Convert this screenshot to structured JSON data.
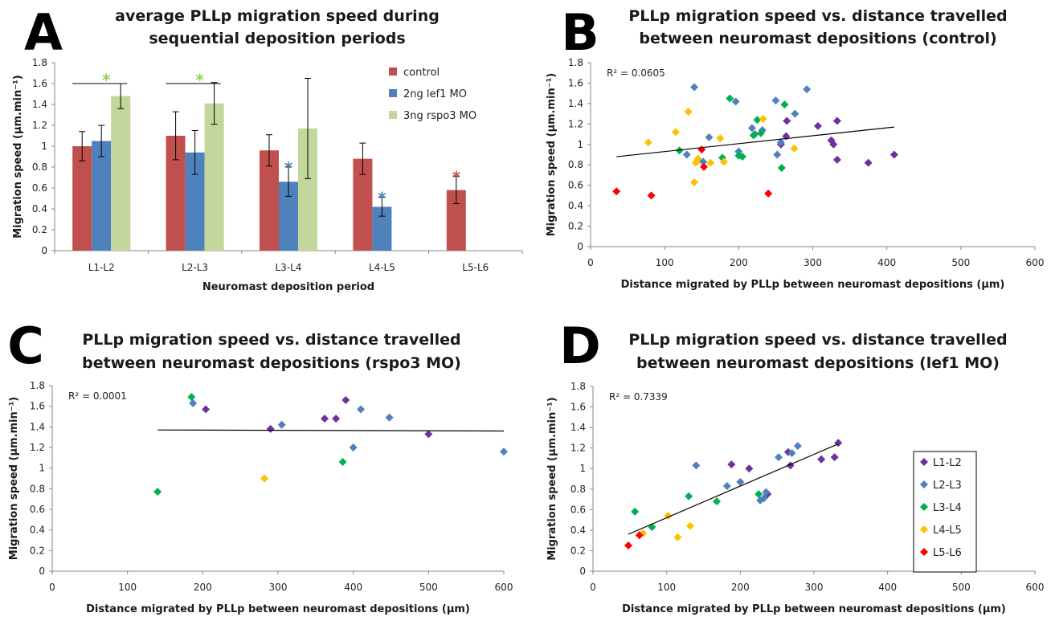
{
  "colors": {
    "control": "#c0504d",
    "lef1": "#4f81bd",
    "rspo3": "#c3d69b",
    "L1-L2": "#7030a0",
    "L2-L3": "#4f81bd",
    "L3-L4": "#00b050",
    "L4-L5": "#ffc000",
    "L5-L6": "#ff0000",
    "star_green": "#92d050",
    "star_blue": "#4f81bd",
    "star_red": "#c0504d"
  },
  "chart_data": [
    {
      "panel": "A",
      "type": "bar",
      "title_lines": [
        "average PLLp migration speed during",
        "sequential deposition periods"
      ],
      "xlabel": "Neuromast deposition period",
      "ylabel": "Migration speed (μm.min⁻¹)",
      "ylim": [
        0,
        1.8
      ],
      "yticks": [
        0,
        0.2,
        0.4,
        0.6,
        0.8,
        1,
        1.2,
        1.4,
        1.6,
        1.8
      ],
      "ytick_labels": [
        "0",
        "0.2",
        "0.4",
        "0.6",
        "0.8",
        "1",
        "1.2",
        "1.4",
        "1.6",
        "1.8"
      ],
      "categories": [
        "L1-L2",
        "L2-L3",
        "L3-L4",
        "L4-L5",
        "L5-L6"
      ],
      "legend_position": "top-right",
      "series": [
        {
          "name": "control",
          "color_key": "control",
          "values": [
            1.0,
            1.1,
            0.96,
            0.88,
            0.58
          ],
          "errors": [
            0.14,
            0.23,
            0.15,
            0.15,
            0.13
          ]
        },
        {
          "name": "2ng lef1 MO",
          "color_key": "lef1",
          "values": [
            1.05,
            0.94,
            0.66,
            0.42,
            null
          ],
          "errors": [
            0.15,
            0.21,
            0.14,
            0.09,
            null
          ]
        },
        {
          "name": "3ng rspo3 MO",
          "color_key": "rspo3",
          "values": [
            1.48,
            1.41,
            1.17,
            null,
            null
          ],
          "errors": [
            0.12,
            0.2,
            0.48,
            null,
            null
          ]
        }
      ],
      "significance": [
        {
          "label": "*",
          "category": 0,
          "series": 2,
          "y": 1.7,
          "color_key": "star_green",
          "bracket": [
            0,
            2
          ]
        },
        {
          "label": "*",
          "category": 1,
          "series": 2,
          "y": 1.7,
          "color_key": "star_green",
          "bracket": [
            0,
            2
          ]
        },
        {
          "label": "*",
          "category": 2,
          "series": 1,
          "y": 0.84,
          "color_key": "star_blue"
        },
        {
          "label": "*",
          "category": 3,
          "series": 1,
          "y": 0.55,
          "color_key": "star_blue"
        },
        {
          "label": "*",
          "category": 4,
          "series": 0,
          "y": 0.75,
          "color_key": "star_red"
        }
      ]
    },
    {
      "panel": "B",
      "type": "scatter",
      "title_lines": [
        "PLLp migration speed vs. distance travelled",
        "between neuromast depositions (control)"
      ],
      "xlabel": "Distance migrated by PLLp between neuromast depositions (μm)",
      "ylabel": "Migration speed (μm.min⁻¹)",
      "xlim": [
        0,
        600
      ],
      "ylim": [
        0,
        1.8
      ],
      "xticks": [
        0,
        100,
        200,
        300,
        400,
        500,
        600
      ],
      "xtick_labels": [
        "0",
        "100",
        "200",
        "300",
        "400",
        "500",
        "600"
      ],
      "yticks": [
        0,
        0.2,
        0.4,
        0.6,
        0.8,
        1,
        1.2,
        1.4,
        1.6,
        1.8
      ],
      "ytick_labels": [
        "0",
        "0.2",
        "0.4",
        "0.6",
        "0.8",
        "1",
        "1.2",
        "1.4",
        "1.6",
        "1.8"
      ],
      "r2_label": "R² = 0.0605",
      "trendline": {
        "x": [
          35,
          410
        ],
        "y": [
          0.88,
          1.17
        ]
      },
      "series": [
        {
          "color_key": "L1-L2",
          "points": [
            [
              257,
              1.0
            ],
            [
              264,
              1.08
            ],
            [
              265,
              1.23
            ],
            [
              307,
              1.18
            ],
            [
              325,
              1.04
            ],
            [
              328,
              1.0
            ],
            [
              333,
              0.85
            ],
            [
              333,
              1.23
            ],
            [
              375,
              0.82
            ],
            [
              410,
              0.9
            ]
          ]
        },
        {
          "color_key": "L2-L3",
          "points": [
            [
              130,
              0.9
            ],
            [
              140,
              1.56
            ],
            [
              152,
              0.83
            ],
            [
              160,
              1.07
            ],
            [
              196,
              1.42
            ],
            [
              200,
              0.93
            ],
            [
              218,
              1.16
            ],
            [
              222,
              1.1
            ],
            [
              232,
              1.14
            ],
            [
              250,
              1.43
            ],
            [
              252,
              0.9
            ],
            [
              257,
              1.02
            ],
            [
              276,
              1.3
            ],
            [
              292,
              1.54
            ]
          ]
        },
        {
          "color_key": "L3-L4",
          "points": [
            [
              120,
              0.94
            ],
            [
              178,
              0.87
            ],
            [
              188,
              1.45
            ],
            [
              200,
              0.89
            ],
            [
              205,
              0.88
            ],
            [
              220,
              1.09
            ],
            [
              225,
              1.24
            ],
            [
              230,
              1.11
            ],
            [
              258,
              0.77
            ],
            [
              262,
              1.39
            ]
          ]
        },
        {
          "color_key": "L4-L5",
          "points": [
            [
              78,
              1.02
            ],
            [
              115,
              1.12
            ],
            [
              132,
              1.32
            ],
            [
              140,
              0.63
            ],
            [
              142,
              0.82
            ],
            [
              145,
              0.86
            ],
            [
              162,
              0.82
            ],
            [
              175,
              1.06
            ],
            [
              180,
              0.83
            ],
            [
              233,
              1.25
            ],
            [
              275,
              0.96
            ]
          ]
        },
        {
          "color_key": "L5-L6",
          "points": [
            [
              35,
              0.54
            ],
            [
              82,
              0.5
            ],
            [
              150,
              0.95
            ],
            [
              153,
              0.78
            ],
            [
              240,
              0.52
            ]
          ]
        }
      ]
    },
    {
      "panel": "C",
      "type": "scatter",
      "title_lines": [
        "PLLp migration speed vs. distance travelled",
        "between neuromast depositions (rspo3 MO)"
      ],
      "xlabel": "Distance migrated by PLLp between neuromast depositions (μm)",
      "ylabel": "Migration speed (μm.min⁻¹)",
      "xlim": [
        0,
        600
      ],
      "ylim": [
        0,
        1.8
      ],
      "xticks": [
        0,
        100,
        200,
        300,
        400,
        500,
        600
      ],
      "xtick_labels": [
        "0",
        "100",
        "200",
        "300",
        "400",
        "500",
        "600"
      ],
      "yticks": [
        0,
        0.2,
        0.4,
        0.6,
        0.8,
        1,
        1.2,
        1.4,
        1.6,
        1.8
      ],
      "ytick_labels": [
        "0",
        "0.2",
        "0.4",
        "0.6",
        "0.8",
        "1",
        "1.2",
        "1.4",
        "1.6",
        "1.8"
      ],
      "r2_label": "R² = 0.0001",
      "trendline": {
        "x": [
          140,
          600
        ],
        "y": [
          1.37,
          1.36
        ]
      },
      "series": [
        {
          "color_key": "L1-L2",
          "points": [
            [
              204,
              1.57
            ],
            [
              290,
              1.38
            ],
            [
              362,
              1.48
            ],
            [
              377,
              1.48
            ],
            [
              390,
              1.66
            ],
            [
              500,
              1.33
            ]
          ]
        },
        {
          "color_key": "L2-L3",
          "points": [
            [
              187,
              1.63
            ],
            [
              305,
              1.42
            ],
            [
              400,
              1.2
            ],
            [
              410,
              1.57
            ],
            [
              448,
              1.49
            ],
            [
              600,
              1.16
            ]
          ]
        },
        {
          "color_key": "L3-L4",
          "points": [
            [
              140,
              0.77
            ],
            [
              185,
              1.69
            ],
            [
              386,
              1.06
            ]
          ]
        },
        {
          "color_key": "L4-L5",
          "points": [
            [
              282,
              0.9
            ]
          ]
        }
      ]
    },
    {
      "panel": "D",
      "type": "scatter",
      "title_lines": [
        "PLLp migration speed vs. distance travelled",
        "between neuromast depositions (lef1 MO)"
      ],
      "xlabel": "Distance migrated by PLLp between neuromast depositions  (μm)",
      "ylabel": "Migration speed (μm.min⁻¹)",
      "xlim": [
        0,
        600
      ],
      "ylim": [
        0,
        1.8
      ],
      "xticks": [
        0,
        100,
        200,
        300,
        400,
        500,
        600
      ],
      "xtick_labels": [
        "0",
        "100",
        "200",
        "300",
        "400",
        "500",
        "600"
      ],
      "yticks": [
        0,
        0.2,
        0.4,
        0.6,
        0.8,
        1,
        1.2,
        1.4,
        1.6,
        1.8
      ],
      "ytick_labels": [
        "0",
        "0.2",
        "0.4",
        "0.6",
        "0.8",
        "1",
        "1.2",
        "1.4",
        "1.6",
        "1.8"
      ],
      "r2_label": "R² = 0.7339",
      "legend_position": "right",
      "legend": [
        "L1-L2",
        "L2-L3",
        "L3-L4",
        "L4-L5",
        "L5-L6"
      ],
      "trendline": {
        "x": [
          48,
          333
        ],
        "y": [
          0.36,
          1.24
        ]
      },
      "series": [
        {
          "name": "L1-L2",
          "color_key": "L1-L2",
          "points": [
            [
              188,
              1.04
            ],
            [
              212,
              1.0
            ],
            [
              237,
              0.75
            ],
            [
              265,
              1.16
            ],
            [
              268,
              1.03
            ],
            [
              310,
              1.09
            ],
            [
              328,
              1.11
            ],
            [
              333,
              1.25
            ]
          ]
        },
        {
          "name": "L2-L3",
          "color_key": "L2-L3",
          "points": [
            [
              140,
              1.03
            ],
            [
              182,
              0.83
            ],
            [
              200,
              0.87
            ],
            [
              227,
              0.69
            ],
            [
              232,
              0.71
            ],
            [
              235,
              0.77
            ],
            [
              252,
              1.11
            ],
            [
              270,
              1.15
            ],
            [
              278,
              1.22
            ]
          ]
        },
        {
          "name": "L3-L4",
          "color_key": "L3-L4",
          "points": [
            [
              57,
              0.58
            ],
            [
              80,
              0.43
            ],
            [
              130,
              0.73
            ],
            [
              168,
              0.68
            ],
            [
              225,
              0.75
            ]
          ]
        },
        {
          "name": "L4-L5",
          "color_key": "L4-L5",
          "points": [
            [
              68,
              0.37
            ],
            [
              102,
              0.54
            ],
            [
              115,
              0.33
            ],
            [
              132,
              0.44
            ]
          ]
        },
        {
          "name": "L5-L6",
          "color_key": "L5-L6",
          "points": [
            [
              48,
              0.25
            ],
            [
              63,
              0.35
            ]
          ]
        }
      ]
    }
  ]
}
